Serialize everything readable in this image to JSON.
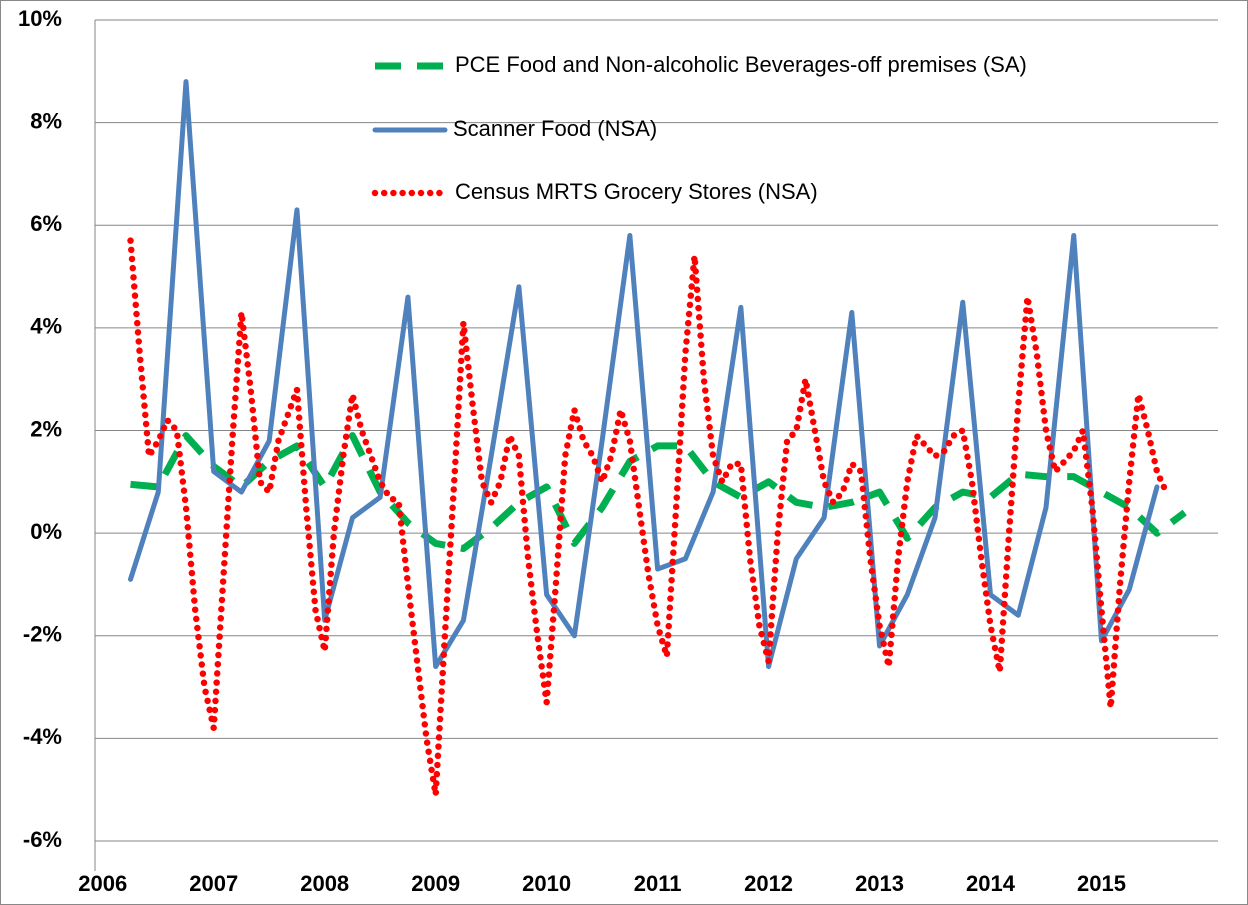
{
  "chart_data": {
    "type": "line",
    "xlim": [
      2005.93,
      2016.05
    ],
    "xticks": [
      2006,
      2007,
      2008,
      2009,
      2010,
      2011,
      2012,
      2013,
      2014,
      2015
    ],
    "ylim": [
      -6,
      10
    ],
    "yticks": [
      {
        "value": -6,
        "label": "-6%"
      },
      {
        "value": -4,
        "label": "-4%"
      },
      {
        "value": -2,
        "label": "-2%"
      },
      {
        "value": 0,
        "label": "0%"
      },
      {
        "value": 2,
        "label": "2%"
      },
      {
        "value": 4,
        "label": "4%"
      },
      {
        "value": 6,
        "label": "6%"
      },
      {
        "value": 8,
        "label": "8%"
      },
      {
        "value": 10,
        "label": "10%"
      }
    ],
    "grid": true,
    "legend": "top",
    "series": [
      {
        "name": "PCE Food and Non-alcoholic Beverages-off premises (SA)",
        "color": "#00b050",
        "line_style": "dashed",
        "x": [
          2006.25,
          2006.5,
          2006.75,
          2007,
          2007.25,
          2007.5,
          2007.75,
          2008,
          2008.25,
          2008.5,
          2008.75,
          2009,
          2009.25,
          2009.5,
          2009.75,
          2010,
          2010.25,
          2010.5,
          2010.75,
          2011,
          2011.25,
          2011.5,
          2011.75,
          2012,
          2012.25,
          2012.5,
          2012.75,
          2013,
          2013.25,
          2013.5,
          2013.75,
          2014,
          2014.25,
          2014.5,
          2014.75,
          2015,
          2015.25,
          2015.5,
          2015.75
        ],
        "values": [
          0.95,
          0.9,
          1.9,
          1.3,
          0.9,
          1.4,
          1.7,
          0.9,
          1.9,
          0.8,
          0.2,
          -0.2,
          -0.3,
          0.1,
          0.6,
          0.9,
          -0.2,
          0.5,
          1.4,
          1.7,
          1.7,
          1.0,
          0.7,
          1.0,
          0.6,
          0.5,
          0.6,
          0.8,
          -0.1,
          0.5,
          0.8,
          0.7,
          1.15,
          1.1,
          1.1,
          0.8,
          0.5,
          0.0,
          0.4
        ]
      },
      {
        "name": "Scanner Food (NSA)",
        "color": "#4f81bd",
        "line_style": "solid",
        "x": [
          2006.25,
          2006.5,
          2006.75,
          2007,
          2007.25,
          2007.5,
          2007.75,
          2008,
          2008.25,
          2008.5,
          2008.75,
          2009,
          2009.25,
          2009.5,
          2009.75,
          2010,
          2010.25,
          2010.5,
          2010.75,
          2011,
          2011.25,
          2011.5,
          2011.75,
          2012,
          2012.25,
          2012.5,
          2012.75,
          2013,
          2013.25,
          2013.5,
          2013.75,
          2014,
          2014.25,
          2014.5,
          2014.75,
          2015,
          2015.25,
          2015.5
        ],
        "values": [
          -0.9,
          0.8,
          8.8,
          1.2,
          0.8,
          1.8,
          6.3,
          -1.7,
          0.3,
          0.7,
          4.6,
          -2.6,
          -1.7,
          1.5,
          4.8,
          -1.2,
          -2.0,
          1.8,
          5.8,
          -0.7,
          -0.5,
          0.8,
          4.4,
          -2.6,
          -0.5,
          0.3,
          4.3,
          -2.2,
          -1.2,
          0.3,
          4.5,
          -1.2,
          -1.6,
          0.5,
          5.8,
          -2.1,
          -1.1,
          0.9
        ]
      },
      {
        "name": "Census MRTS Grocery Stores (NSA)",
        "color": "#ff0000",
        "line_style": "dotted",
        "x": [
          2006.25,
          2006.333,
          2006.417,
          2006.5,
          2006.583,
          2006.667,
          2006.75,
          2006.833,
          2006.917,
          2007,
          2007.083,
          2007.167,
          2007.25,
          2007.333,
          2007.417,
          2007.5,
          2007.583,
          2007.667,
          2007.75,
          2007.833,
          2007.917,
          2008,
          2008.083,
          2008.167,
          2008.25,
          2008.333,
          2008.417,
          2008.5,
          2008.583,
          2008.667,
          2008.75,
          2008.833,
          2008.917,
          2009,
          2009.083,
          2009.167,
          2009.25,
          2009.333,
          2009.417,
          2009.5,
          2009.583,
          2009.667,
          2009.75,
          2009.833,
          2009.917,
          2010,
          2010.083,
          2010.167,
          2010.25,
          2010.333,
          2010.417,
          2010.5,
          2010.583,
          2010.667,
          2010.75,
          2010.833,
          2010.917,
          2011,
          2011.083,
          2011.167,
          2011.25,
          2011.333,
          2011.417,
          2011.5,
          2011.583,
          2011.667,
          2011.75,
          2011.833,
          2011.917,
          2012,
          2012.083,
          2012.167,
          2012.25,
          2012.333,
          2012.417,
          2012.5,
          2012.583,
          2012.667,
          2012.75,
          2012.833,
          2012.917,
          2013,
          2013.083,
          2013.167,
          2013.25,
          2013.333,
          2013.417,
          2013.5,
          2013.583,
          2013.667,
          2013.75,
          2013.833,
          2013.917,
          2014,
          2014.083,
          2014.167,
          2014.25,
          2014.333,
          2014.417,
          2014.5,
          2014.583,
          2014.667,
          2014.75,
          2014.833,
          2014.917,
          2015,
          2015.083,
          2015.167,
          2015.25,
          2015.333,
          2015.417,
          2015.5,
          2015.583
        ],
        "values": [
          5.7,
          3.5,
          1.5,
          1.8,
          2.2,
          2.0,
          0.5,
          -1.5,
          -3.0,
          -3.8,
          -1.0,
          1.8,
          4.3,
          2.8,
          1.0,
          0.8,
          1.8,
          2.3,
          2.8,
          0.5,
          -1.5,
          -2.3,
          0.0,
          1.5,
          2.7,
          2.0,
          1.5,
          1.0,
          0.7,
          0.6,
          -1.0,
          -2.5,
          -4.0,
          -5.1,
          -2.0,
          1.0,
          4.1,
          2.5,
          1.0,
          0.6,
          1.0,
          1.9,
          1.5,
          -0.5,
          -2.0,
          -3.3,
          -1.0,
          1.5,
          2.4,
          1.8,
          1.5,
          1.0,
          1.5,
          2.4,
          1.8,
          0.5,
          -0.8,
          -1.8,
          -2.4,
          0.5,
          3.5,
          5.4,
          3.0,
          1.5,
          1.0,
          1.35,
          1.35,
          -0.5,
          -1.8,
          -2.5,
          0.0,
          1.8,
          2.0,
          3.0,
          2.0,
          1.0,
          0.6,
          0.8,
          1.35,
          1.2,
          -0.5,
          -1.8,
          -2.6,
          -0.5,
          1.0,
          1.9,
          1.7,
          1.5,
          1.6,
          1.9,
          2.0,
          1.0,
          -0.5,
          -1.8,
          -2.7,
          0.0,
          2.5,
          4.6,
          3.5,
          2.0,
          1.2,
          1.4,
          1.6,
          2.0,
          0.5,
          -1.5,
          -3.4,
          -1.0,
          1.0,
          2.7,
          2.0,
          1.2,
          0.8
        ]
      }
    ]
  }
}
